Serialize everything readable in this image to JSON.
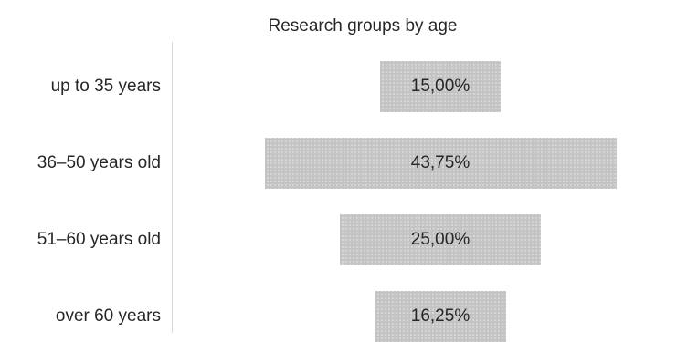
{
  "chart_data": {
    "type": "bar",
    "orientation": "horizontal-funnel",
    "title": "Research groups by age",
    "categories": [
      "up to 35 years",
      "36–50 years old",
      "51–60 years old",
      "over 60 years"
    ],
    "values": [
      15.0,
      43.75,
      25.0,
      16.25
    ],
    "data_labels": [
      "15,00%",
      "43,75%",
      "25,00%",
      "16,25%"
    ],
    "unit": "%",
    "grid": false,
    "legend": "none",
    "bar_color": "#c8c8c8"
  }
}
